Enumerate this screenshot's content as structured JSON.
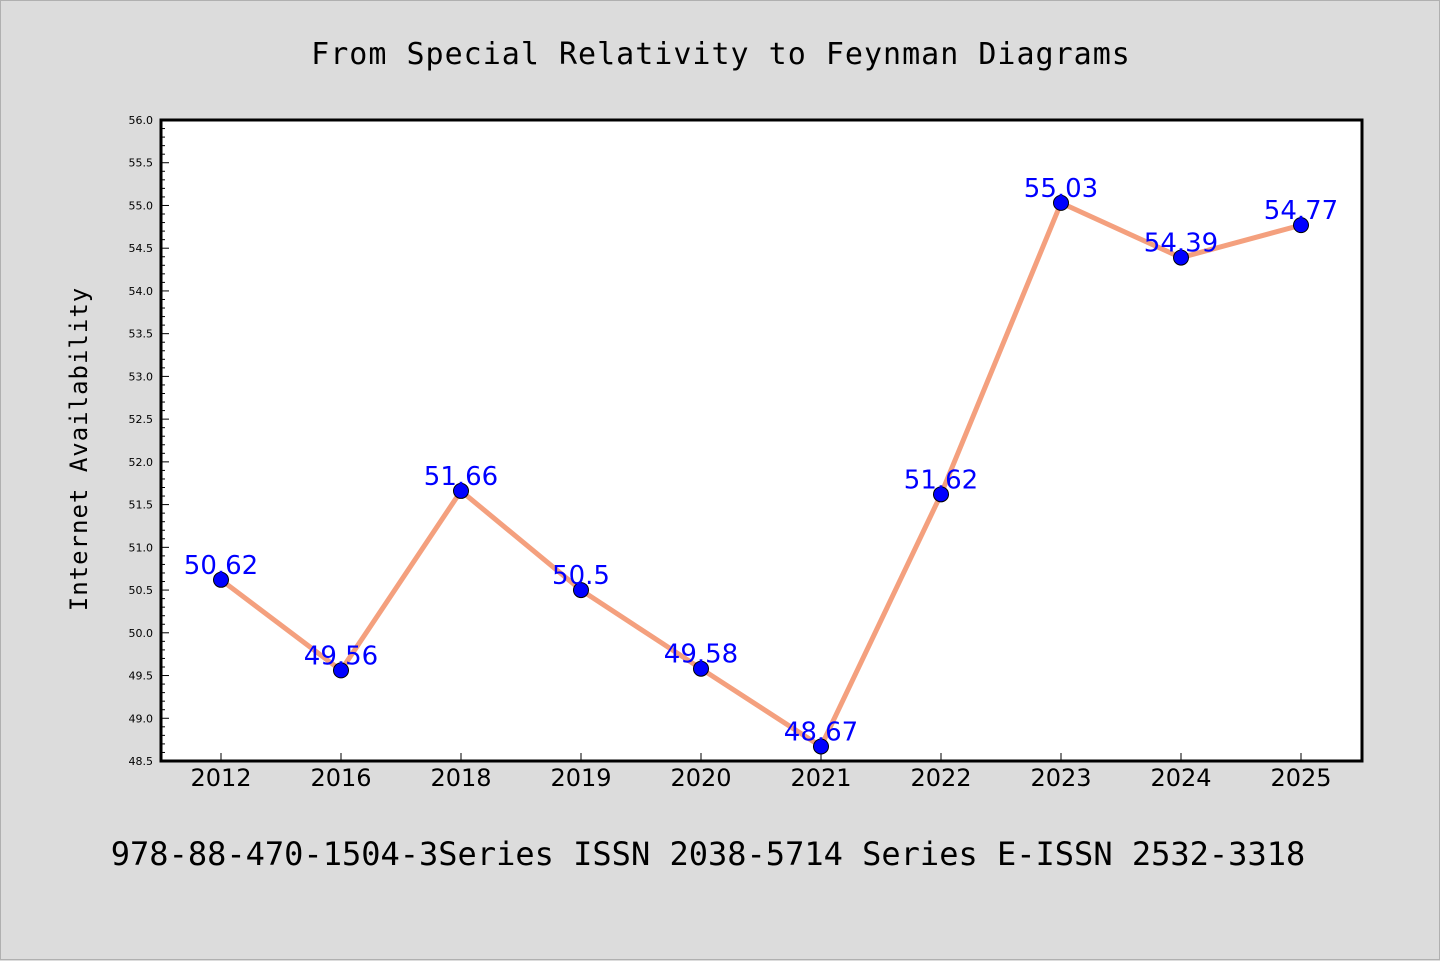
{
  "colors": {
    "background": "#dcdcdc",
    "plot_background": "#ffffff",
    "line": "#f4a07e",
    "marker": "#0000ff",
    "data_label": "#0000ff"
  },
  "footer": "978-88-470-1504-3Series ISSN 2038-5714 Series E-ISSN 2532-3318",
  "chart_data": {
    "type": "line",
    "title": "From Special Relativity to Feynman Diagrams",
    "xlabel": "",
    "ylabel": "Internet Availability",
    "categories": [
      "2012",
      "2016",
      "2018",
      "2019",
      "2020",
      "2021",
      "2022",
      "2023",
      "2024",
      "2025"
    ],
    "series": [
      {
        "values": [
          50.62,
          49.56,
          51.66,
          50.5,
          49.58,
          48.67,
          51.62,
          55.03,
          54.39,
          54.77
        ],
        "labels": [
          "50.62",
          "49.56",
          "51.66",
          "50.5",
          "49.58",
          "48.67",
          "51.62",
          "55.03",
          "54.39",
          "54.77"
        ]
      }
    ],
    "ylim": [
      48.5,
      56.0
    ],
    "yticks": [
      "48.5",
      "49.0",
      "49.5",
      "50.0",
      "50.5",
      "51.0",
      "51.5",
      "52.0",
      "52.5",
      "53.0",
      "53.5",
      "54.0",
      "54.5",
      "55.0",
      "55.5",
      "56.0"
    ],
    "grid": false,
    "legend": "none"
  }
}
